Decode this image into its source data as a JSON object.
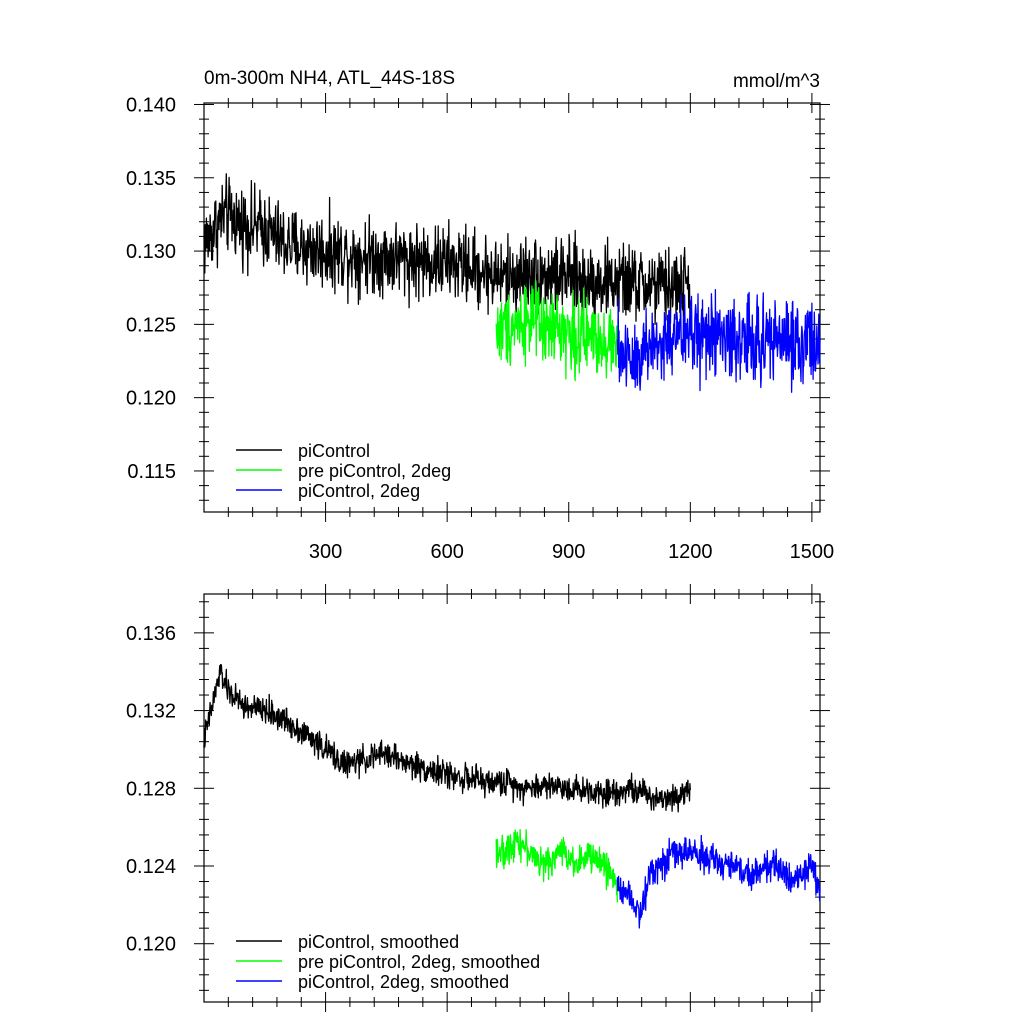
{
  "chart_data": [
    {
      "type": "line",
      "title": "0m-300m NH4, ATL_44S-18S",
      "units": "mmol/m^3",
      "xlim": [
        0,
        1520
      ],
      "ylim": [
        0.1122,
        0.1401
      ],
      "x_ticks": [
        300,
        600,
        900,
        1200,
        1500
      ],
      "y_ticks": [
        0.14,
        0.135,
        0.13,
        0.125,
        0.12,
        0.115
      ],
      "y_tick_labels": [
        "0.140",
        "0.135",
        "0.130",
        "0.125",
        "0.120",
        "0.115"
      ],
      "x_tick_labels": [
        "300",
        "600",
        "900",
        "1200",
        "1500"
      ],
      "grid": false,
      "legend_position": "bottom-left",
      "series": [
        {
          "name": "piControl",
          "color": "#000000",
          "x": [
            0,
            50,
            100,
            150,
            200,
            250,
            300,
            350,
            400,
            450,
            500,
            550,
            600,
            650,
            700,
            750,
            800,
            850,
            900,
            950,
            1000,
            1050,
            1100,
            1150,
            1200
          ],
          "values": [
            0.1305,
            0.1325,
            0.1318,
            0.1315,
            0.1305,
            0.1302,
            0.13,
            0.1298,
            0.1297,
            0.1296,
            0.1295,
            0.1293,
            0.1292,
            0.129,
            0.1285,
            0.1282,
            0.1285,
            0.1283,
            0.1282,
            0.128,
            0.1279,
            0.1278,
            0.1276,
            0.1275,
            0.1278
          ],
          "noise": 0.0022
        },
        {
          "name": "pre piControl, 2deg",
          "color": "#00ff00",
          "x": [
            721,
            760,
            800,
            840,
            880,
            920,
            960,
            1000,
            1020
          ],
          "values": [
            0.1245,
            0.125,
            0.1255,
            0.1245,
            0.1248,
            0.124,
            0.1243,
            0.1238,
            0.1236
          ],
          "noise": 0.0022
        },
        {
          "name": "piControl, 2deg",
          "color": "#0000ff",
          "x": [
            1020,
            1060,
            1100,
            1150,
            1200,
            1250,
            1300,
            1350,
            1400,
            1450,
            1500,
            1520
          ],
          "values": [
            0.1232,
            0.1228,
            0.1235,
            0.1238,
            0.1245,
            0.1242,
            0.124,
            0.1238,
            0.1241,
            0.1238,
            0.124,
            0.1232
          ],
          "noise": 0.0025
        }
      ]
    },
    {
      "type": "line",
      "xlim": [
        0,
        1520
      ],
      "ylim": [
        0.117,
        0.138
      ],
      "x_ticks": [
        300,
        600,
        900,
        1200,
        1500
      ],
      "y_ticks": [
        0.136,
        0.132,
        0.128,
        0.124,
        0.12
      ],
      "y_tick_labels": [
        "0.136",
        "0.132",
        "0.128",
        "0.124",
        "0.120"
      ],
      "grid": false,
      "legend_position": "bottom-left",
      "series": [
        {
          "name": "piControl, smoothed",
          "color": "#000000",
          "x": [
            0,
            20,
            40,
            60,
            100,
            150,
            200,
            250,
            300,
            350,
            400,
            450,
            500,
            550,
            600,
            650,
            700,
            750,
            800,
            850,
            900,
            950,
            1000,
            1050,
            1100,
            1150,
            1200
          ],
          "values": [
            0.1305,
            0.1322,
            0.134,
            0.133,
            0.1322,
            0.132,
            0.1315,
            0.1308,
            0.13,
            0.1292,
            0.1295,
            0.1298,
            0.1293,
            0.129,
            0.1287,
            0.1285,
            0.1283,
            0.1283,
            0.128,
            0.1282,
            0.128,
            0.1279,
            0.1278,
            0.128,
            0.1276,
            0.1275,
            0.128
          ],
          "noise": 0.0006
        },
        {
          "name": "pre piControl, 2deg, smoothed",
          "color": "#00ff00",
          "x": [
            721,
            740,
            770,
            800,
            840,
            880,
            920,
            960,
            1000,
            1020
          ],
          "values": [
            0.125,
            0.1245,
            0.1255,
            0.1248,
            0.124,
            0.1248,
            0.1242,
            0.1245,
            0.1238,
            0.1228
          ],
          "noise": 0.0007
        },
        {
          "name": "piControl, 2deg, smoothed",
          "color": "#0000ff",
          "x": [
            1020,
            1050,
            1080,
            1100,
            1150,
            1200,
            1250,
            1300,
            1350,
            1400,
            1450,
            1500,
            1520
          ],
          "values": [
            0.123,
            0.1226,
            0.1215,
            0.1238,
            0.1245,
            0.1248,
            0.1243,
            0.124,
            0.1236,
            0.124,
            0.1235,
            0.1238,
            0.1228
          ],
          "noise": 0.0007
        }
      ]
    }
  ]
}
